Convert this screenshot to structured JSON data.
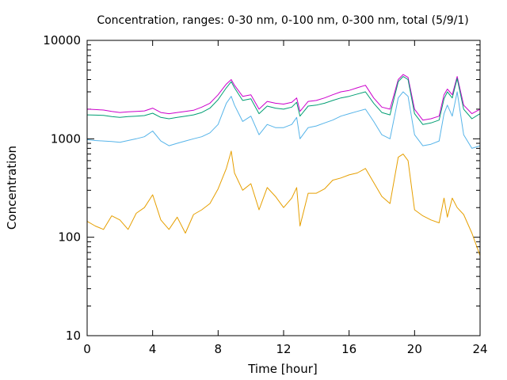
{
  "chart_data": {
    "type": "line",
    "title": "Concentration, ranges: 0-30 nm, 0-100 nm, 0-300 nm, total (5/9/1)",
    "xlabel": "Time [hour]",
    "ylabel": "Concentration",
    "xlim": [
      0,
      24
    ],
    "ylim": [
      10,
      10000
    ],
    "yscale": "log",
    "grid": false,
    "x_ticks": [
      0,
      4,
      8,
      12,
      16,
      20,
      24
    ],
    "x_tick_labels": [
      "0",
      "4",
      "8",
      "12",
      "16",
      "20",
      "24"
    ],
    "y_ticks": [
      10,
      100,
      1000,
      10000
    ],
    "y_tick_labels": [
      "10",
      "100",
      "1000",
      "10000"
    ],
    "x": [
      0,
      0.5,
      1,
      1.5,
      2,
      2.5,
      3,
      3.5,
      4,
      4.5,
      5,
      5.5,
      6,
      6.5,
      7,
      7.5,
      8,
      8.5,
      8.8,
      9,
      9.5,
      10,
      10.5,
      11,
      11.5,
      12,
      12.5,
      12.8,
      13,
      13.5,
      14,
      14.5,
      15,
      15.5,
      16,
      16.5,
      17,
      17.5,
      18,
      18.5,
      19,
      19.3,
      19.6,
      20,
      20.5,
      21,
      21.5,
      21.8,
      22,
      22.3,
      22.6,
      23,
      23.5,
      24
    ],
    "series": [
      {
        "color": "#cc00cc",
        "values": [
          2000,
          1980,
          1960,
          1900,
          1850,
          1880,
          1900,
          1920,
          2050,
          1850,
          1800,
          1850,
          1900,
          1950,
          2100,
          2300,
          2800,
          3600,
          4000,
          3500,
          2700,
          2800,
          2000,
          2400,
          2300,
          2250,
          2350,
          2600,
          1900,
          2400,
          2450,
          2600,
          2800,
          3000,
          3100,
          3300,
          3500,
          2600,
          2100,
          2000,
          4000,
          4500,
          4200,
          2000,
          1550,
          1600,
          1700,
          2800,
          3200,
          2800,
          4300,
          2200,
          1800,
          2000
        ]
      },
      {
        "color": "#009e73",
        "values": [
          1750,
          1740,
          1730,
          1680,
          1650,
          1680,
          1700,
          1720,
          1820,
          1650,
          1600,
          1650,
          1700,
          1750,
          1850,
          2050,
          2500,
          3300,
          3800,
          3300,
          2450,
          2550,
          1800,
          2150,
          2050,
          2000,
          2100,
          2350,
          1700,
          2150,
          2200,
          2300,
          2450,
          2600,
          2700,
          2850,
          3000,
          2300,
          1850,
          1750,
          3800,
          4300,
          4000,
          1800,
          1400,
          1450,
          1550,
          2550,
          3000,
          2600,
          4100,
          2000,
          1600,
          1800
        ]
      },
      {
        "color": "#56b4e9",
        "values": [
          980,
          960,
          950,
          940,
          920,
          960,
          1000,
          1050,
          1200,
          950,
          850,
          900,
          950,
          1000,
          1050,
          1150,
          1400,
          2300,
          2700,
          2200,
          1500,
          1700,
          1100,
          1400,
          1300,
          1300,
          1400,
          1650,
          1000,
          1300,
          1350,
          1450,
          1550,
          1700,
          1800,
          1900,
          2000,
          1500,
          1100,
          1000,
          2600,
          3000,
          2700,
          1100,
          850,
          880,
          950,
          1800,
          2200,
          1700,
          3000,
          1100,
          800,
          850
        ]
      },
      {
        "color": "#e69f00",
        "values": [
          145,
          130,
          120,
          165,
          150,
          120,
          175,
          200,
          270,
          150,
          120,
          160,
          110,
          170,
          190,
          220,
          310,
          500,
          750,
          450,
          300,
          350,
          190,
          320,
          260,
          200,
          250,
          320,
          130,
          280,
          280,
          310,
          380,
          400,
          430,
          450,
          500,
          360,
          260,
          220,
          650,
          700,
          600,
          190,
          165,
          150,
          140,
          250,
          160,
          250,
          200,
          170,
          110,
          65
        ]
      }
    ]
  }
}
